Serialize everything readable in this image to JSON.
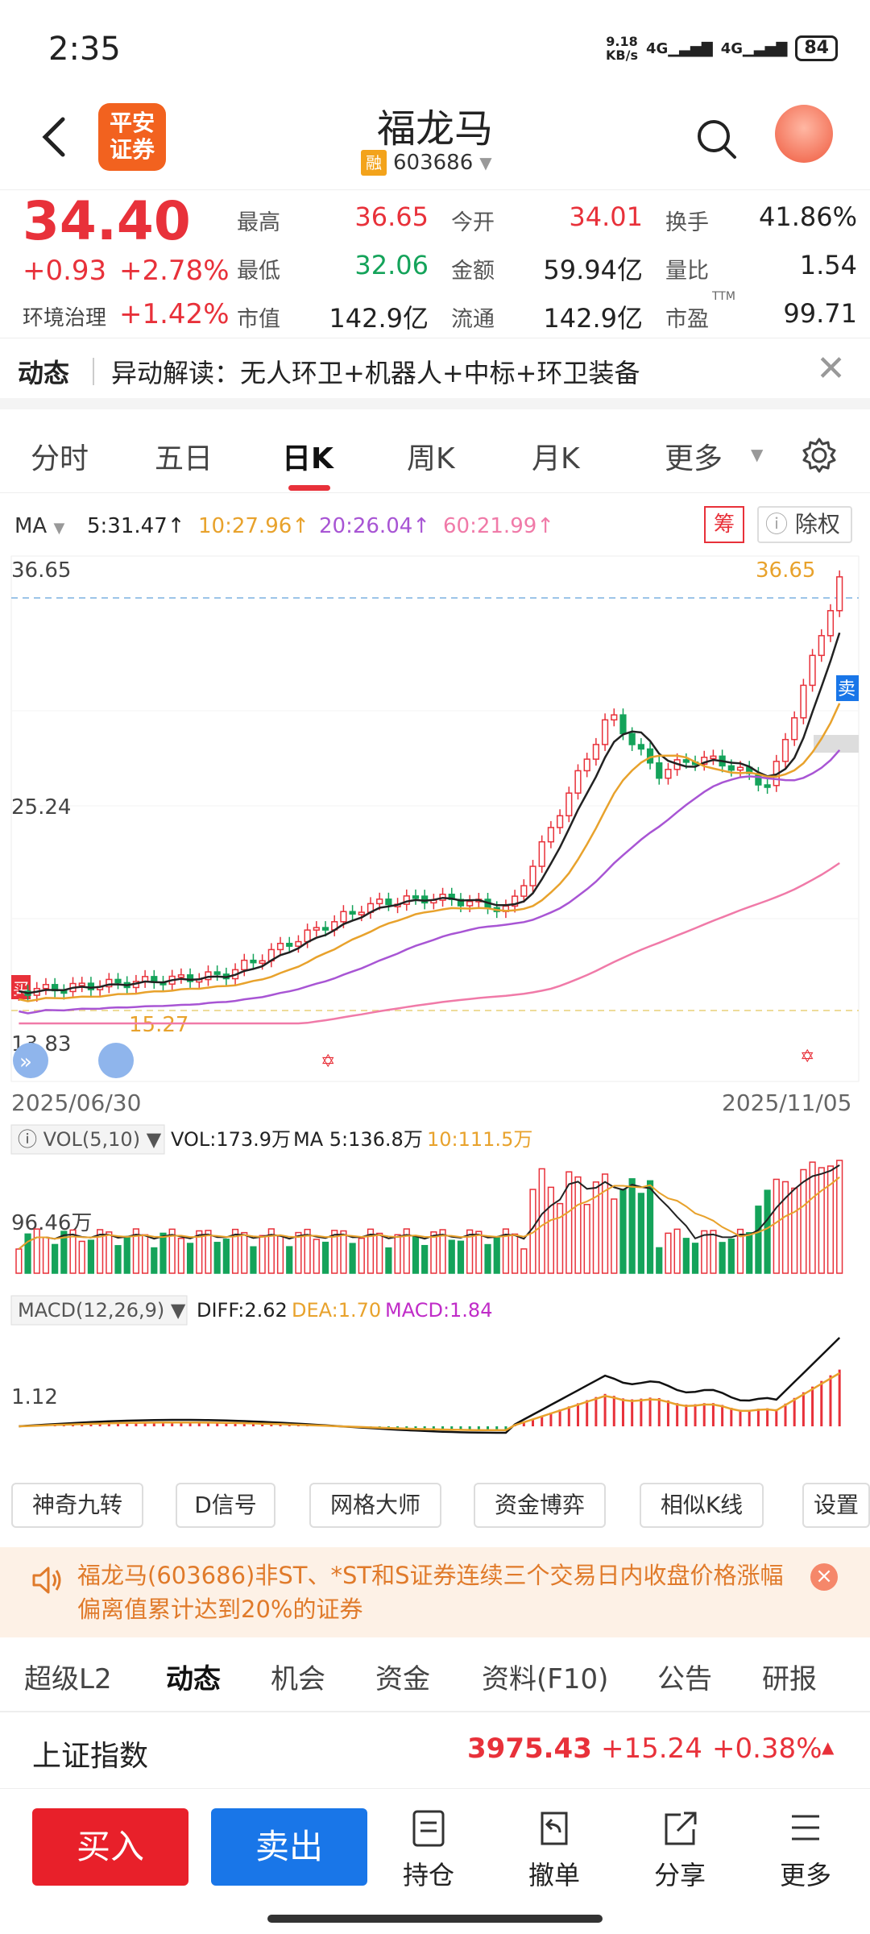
{
  "status_bar": {
    "time": "2:35",
    "net_speed": "9.18",
    "net_unit": "KB/s",
    "signal1": "4G",
    "signal2": "4G",
    "battery": "84"
  },
  "header": {
    "broker_logo": "平安\n证券",
    "stock_name": "福龙马",
    "margin_badge": "融",
    "stock_code": "603686"
  },
  "quote": {
    "price": "34.40",
    "change": "+0.93",
    "change_pct": "+2.78%",
    "industry": "环境治理",
    "industry_pct": "+1.42%",
    "fields": [
      {
        "label": "最高",
        "value": "36.65",
        "color": "red"
      },
      {
        "label": "今开",
        "value": "34.01",
        "color": "red"
      },
      {
        "label": "换手",
        "value": "41.86%",
        "color": "dark"
      },
      {
        "label": "最低",
        "value": "32.06",
        "color": "green"
      },
      {
        "label": "金额",
        "value": "59.94亿",
        "color": "dark"
      },
      {
        "label": "量比",
        "value": "1.54",
        "color": "dark"
      },
      {
        "label": "市值",
        "value": "142.9亿",
        "color": "dark"
      },
      {
        "label": "流通",
        "value": "142.9亿",
        "color": "dark"
      },
      {
        "label": "市盈",
        "value": "99.71",
        "color": "dark"
      }
    ],
    "pe_sup": "TTM"
  },
  "news": {
    "tag": "动态",
    "text": "异动解读：无人环卫+机器人+中标+环卫装备"
  },
  "chart_tabs": [
    "分时",
    "五日",
    "日K",
    "周K",
    "月K",
    "更多"
  ],
  "active_tab": "日K",
  "ma_row": {
    "label": "MA",
    "ma5": "5:31.47↑",
    "ma10": "10:27.96↑",
    "ma20": "20:26.04↑",
    "ma60": "60:21.99↑",
    "chou": "筹",
    "chuquan": "除权"
  },
  "price_axis": {
    "top": "36.65",
    "mid": "25.24",
    "low": "13.83",
    "max_marker": "36.65",
    "min_marker": "15.27",
    "buy_tag": "买",
    "sell_tag": "卖"
  },
  "dates": {
    "start": "2025/06/30",
    "end": "2025/11/05"
  },
  "vol_panel": {
    "label": "VOL(5,10)",
    "vol": "VOL:173.9万",
    "ma5": "MA 5:136.8万",
    "ma10": "10:111.5万",
    "axis": "96.46万"
  },
  "macd_panel": {
    "label": "MACD(12,26,9)",
    "diff": "DIFF:2.62",
    "dea": "DEA:1.70",
    "macd": "MACD:1.84",
    "axis": "1.12"
  },
  "tool_buttons": [
    "神奇九转",
    "D信号",
    "网格大师",
    "资金博弈",
    "相似K线",
    "设置"
  ],
  "alert": {
    "text": "福龙马(603686)非ST、*ST和S证券连续三个交易日内收盘价格涨幅偏离值累计达到20%的证券"
  },
  "sub_tabs": [
    "超级L2",
    "动态",
    "机会",
    "资金",
    "资料(F10)",
    "公告",
    "研报"
  ],
  "active_sub_tab": "动态",
  "index_row": {
    "name": "上证指数",
    "value": "3975.43",
    "change": "+15.24",
    "pct": "+0.38%"
  },
  "bottom_bar": {
    "buy": "买入",
    "sell": "卖出",
    "items": [
      "持仓",
      "撤单",
      "分享",
      "更多"
    ]
  },
  "colors": {
    "up": "#e8313a",
    "down": "#14a35a",
    "ma5": "#222222",
    "ma10": "#e8a22c",
    "ma20": "#a855d4",
    "ma60": "#f07aa8"
  }
}
